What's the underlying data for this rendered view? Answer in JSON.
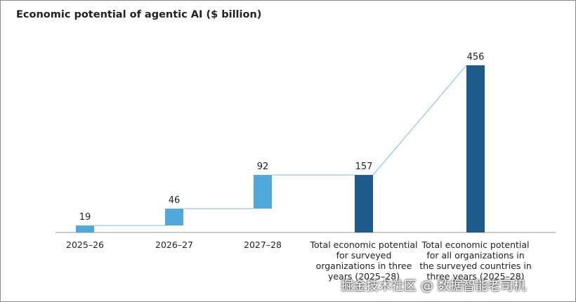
{
  "chart_data": {
    "type": "waterfall",
    "title": "Economic potential of agentic AI ($ billion)",
    "categories": [
      "2025–26",
      "2026–27",
      "2027–28",
      "Total economic potential for surveyed organizations in three years (2025–28)",
      "Total economic potential for all organizations in the surveyed countries in three years (2025–28)"
    ],
    "values": [
      19,
      46,
      92,
      157,
      456
    ],
    "is_total": [
      false,
      false,
      false,
      true,
      true
    ],
    "colors": [
      "#4fa7da",
      "#4fa7da",
      "#4fa7da",
      "#1f5a8c",
      "#1f5a8c"
    ],
    "connector_color": "#8cc4e6",
    "ylim": [
      0,
      456
    ]
  },
  "watermark": "掘金技术社区 @ 数据智能老司机"
}
